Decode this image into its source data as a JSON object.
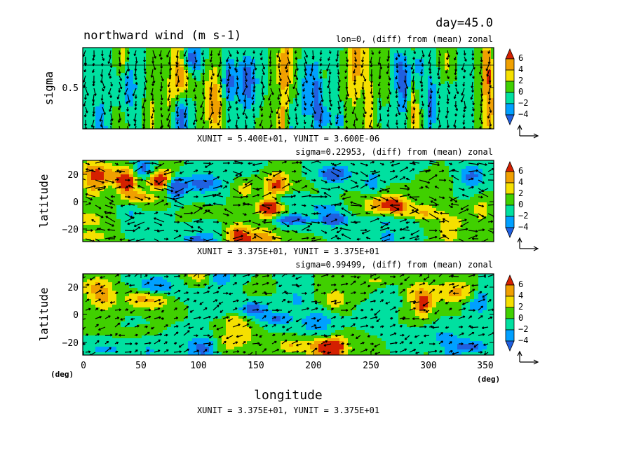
{
  "header": {
    "day": "day=45.0",
    "title": "northward wind (m s-1)"
  },
  "colorbar": {
    "labels": [
      "6",
      "4",
      "2",
      "0",
      "−2",
      "−4"
    ],
    "colors": [
      "#d42000",
      "#f0a000",
      "#f5e000",
      "#40d000",
      "#00e0a0",
      "#00a0ff",
      "#2060e0"
    ]
  },
  "chart_data": [
    {
      "type": "heatmap",
      "subtitle": "lon=0, (diff) from (mean) zonal",
      "ylabel": "sigma",
      "yticks": [
        "0.5"
      ],
      "units_note": "XUNIT = 5.400E+01, YUNIT = 3.600E-06",
      "colorbar_levels": [
        6,
        4,
        2,
        0,
        -2,
        -4
      ]
    },
    {
      "type": "heatmap",
      "subtitle": "sigma=0.22953, (diff) from (mean) zonal",
      "ylabel": "latitude",
      "yticks": [
        "20",
        "0",
        "−20"
      ],
      "units_note": "XUNIT = 3.375E+01, YUNIT = 3.375E+01",
      "colorbar_levels": [
        6,
        4,
        2,
        0,
        -2,
        -4
      ]
    },
    {
      "type": "heatmap",
      "subtitle": "sigma=0.99499, (diff) from (mean) zonal",
      "ylabel": "latitude",
      "yticks": [
        "20",
        "0",
        "−20"
      ],
      "xlabel": "longitude",
      "xticks": [
        "0",
        "50",
        "100",
        "150",
        "200",
        "250",
        "300",
        "350"
      ],
      "xunit_left": "(deg)",
      "xunit_right": "(deg)",
      "units_note": "XUNIT = 3.375E+01, YUNIT = 3.375E+01",
      "colorbar_levels": [
        6,
        4,
        2,
        0,
        -2,
        -4
      ]
    }
  ]
}
